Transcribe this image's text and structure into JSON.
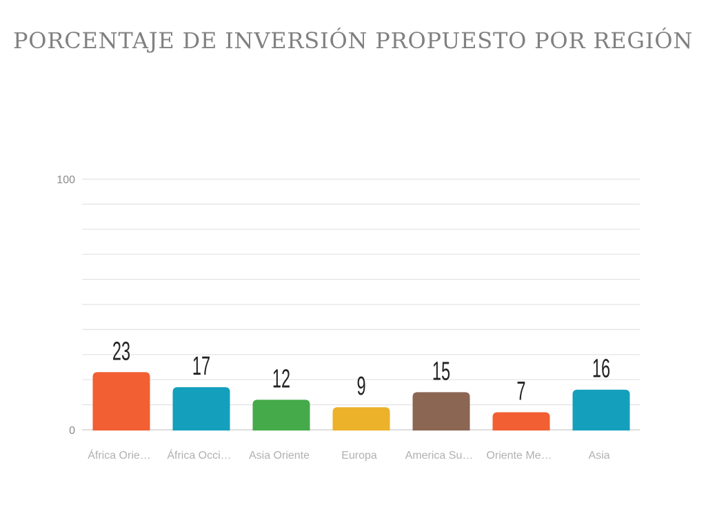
{
  "chart_data": {
    "type": "bar",
    "title": "PORCENTAJE DE INVERSIÓN PROPUESTO POR REGIÓN",
    "xlabel": "",
    "ylabel": "",
    "ylim": [
      0,
      100
    ],
    "y_ticks": [
      0,
      100
    ],
    "grid": true,
    "legend": "none",
    "categories": [
      "África Orie…",
      "África Occi…",
      "Asia Oriente",
      "Europa",
      "America Su…",
      "Oriente Me…",
      "Asia"
    ],
    "values": [
      23,
      17,
      12,
      9,
      15,
      7,
      16
    ],
    "colors": [
      "#f15f33",
      "#149fbc",
      "#45aa4a",
      "#ebb22a",
      "#8b6653",
      "#f15f33",
      "#149fbc"
    ]
  }
}
